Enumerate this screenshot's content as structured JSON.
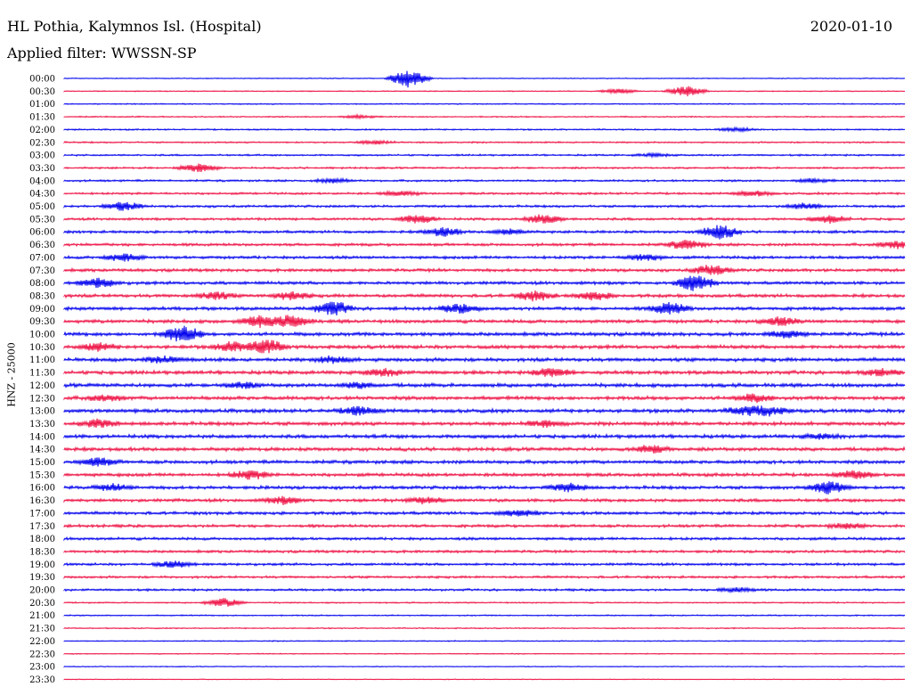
{
  "header": {
    "station": "HL Pothia, Kalymnos Isl. (Hospital)",
    "date": "2020-01-10",
    "filter": "Applied filter: WWSSN-SP",
    "channel_label": "HNZ - 25000"
  },
  "colors": {
    "even_trace": "#0000ee",
    "odd_trace": "#ee1144",
    "background": "#ffffff",
    "text": "#000000"
  },
  "chart_data": {
    "type": "line",
    "title": "HL Pothia, Kalymnos Isl. (Hospital)",
    "ylabel": "HNZ - 25000",
    "rows": [
      {
        "time": "00:00",
        "events": [
          {
            "at": 0.41,
            "amp": 3.4
          }
        ]
      },
      {
        "time": "00:30",
        "events": [
          {
            "at": 0.74,
            "amp": 1.8
          },
          {
            "at": 0.66,
            "amp": 0.8
          }
        ]
      },
      {
        "time": "01:00",
        "events": []
      },
      {
        "time": "01:30",
        "events": [
          {
            "at": 0.35,
            "amp": 0.5
          }
        ]
      },
      {
        "time": "02:00",
        "events": [
          {
            "at": 0.8,
            "amp": 0.6
          }
        ]
      },
      {
        "time": "02:30",
        "events": [
          {
            "at": 0.37,
            "amp": 0.6
          }
        ]
      },
      {
        "time": "03:00",
        "events": [
          {
            "at": 0.7,
            "amp": 0.5
          }
        ]
      },
      {
        "time": "03:30",
        "events": [
          {
            "at": 0.16,
            "amp": 1.4
          }
        ]
      },
      {
        "time": "04:00",
        "events": [
          {
            "at": 0.32,
            "amp": 0.7
          },
          {
            "at": 0.89,
            "amp": 0.6
          }
        ]
      },
      {
        "time": "04:30",
        "events": [
          {
            "at": 0.4,
            "amp": 0.8
          },
          {
            "at": 0.82,
            "amp": 0.9
          }
        ]
      },
      {
        "time": "05:00",
        "events": [
          {
            "at": 0.07,
            "amp": 1.5
          },
          {
            "at": 0.88,
            "amp": 1.0
          }
        ]
      },
      {
        "time": "05:30",
        "events": [
          {
            "at": 0.42,
            "amp": 1.5
          },
          {
            "at": 0.57,
            "amp": 1.6
          },
          {
            "at": 0.91,
            "amp": 1.3
          }
        ]
      },
      {
        "time": "06:00",
        "events": [
          {
            "at": 0.45,
            "amp": 1.5
          },
          {
            "at": 0.53,
            "amp": 0.9
          },
          {
            "at": 0.78,
            "amp": 2.5
          }
        ]
      },
      {
        "time": "06:30",
        "events": [
          {
            "at": 0.74,
            "amp": 1.6
          },
          {
            "at": 0.99,
            "amp": 1.3
          }
        ]
      },
      {
        "time": "07:00",
        "events": [
          {
            "at": 0.07,
            "amp": 1.3
          },
          {
            "at": 0.69,
            "amp": 1.1
          }
        ]
      },
      {
        "time": "07:30",
        "events": [
          {
            "at": 0.77,
            "amp": 1.8
          }
        ]
      },
      {
        "time": "08:00",
        "events": [
          {
            "at": 0.04,
            "amp": 1.6
          },
          {
            "at": 0.75,
            "amp": 2.8
          }
        ]
      },
      {
        "time": "08:30",
        "events": [
          {
            "at": 0.18,
            "amp": 1.3
          },
          {
            "at": 0.27,
            "amp": 1.3
          },
          {
            "at": 0.56,
            "amp": 1.6
          },
          {
            "at": 0.63,
            "amp": 1.4
          }
        ]
      },
      {
        "time": "09:00",
        "events": [
          {
            "at": 0.32,
            "amp": 2.4
          },
          {
            "at": 0.47,
            "amp": 1.4
          },
          {
            "at": 0.72,
            "amp": 2.0
          }
        ]
      },
      {
        "time": "09:30",
        "events": [
          {
            "at": 0.23,
            "amp": 1.9
          },
          {
            "at": 0.27,
            "amp": 2.0
          },
          {
            "at": 0.85,
            "amp": 1.4
          }
        ]
      },
      {
        "time": "10:00",
        "events": [
          {
            "at": 0.14,
            "amp": 3.0
          },
          {
            "at": 0.86,
            "amp": 1.1
          }
        ]
      },
      {
        "time": "10:30",
        "events": [
          {
            "at": 0.04,
            "amp": 1.3
          },
          {
            "at": 0.2,
            "amp": 1.6
          },
          {
            "at": 0.24,
            "amp": 2.4
          }
        ]
      },
      {
        "time": "11:00",
        "events": [
          {
            "at": 0.12,
            "amp": 1.1
          },
          {
            "at": 0.32,
            "amp": 1.0
          }
        ]
      },
      {
        "time": "11:30",
        "events": [
          {
            "at": 0.38,
            "amp": 1.2
          },
          {
            "at": 0.58,
            "amp": 1.6
          },
          {
            "at": 0.97,
            "amp": 1.0
          }
        ]
      },
      {
        "time": "12:00",
        "events": [
          {
            "at": 0.21,
            "amp": 1.0
          },
          {
            "at": 0.35,
            "amp": 0.9
          }
        ]
      },
      {
        "time": "12:30",
        "events": [
          {
            "at": 0.05,
            "amp": 1.0
          },
          {
            "at": 0.82,
            "amp": 1.3
          }
        ]
      },
      {
        "time": "13:00",
        "events": [
          {
            "at": 0.35,
            "amp": 1.4
          },
          {
            "at": 0.81,
            "amp": 1.3
          },
          {
            "at": 0.84,
            "amp": 1.4
          }
        ]
      },
      {
        "time": "13:30",
        "events": [
          {
            "at": 0.04,
            "amp": 1.3
          },
          {
            "at": 0.57,
            "amp": 1.0
          }
        ]
      },
      {
        "time": "14:00",
        "events": [
          {
            "at": 0.9,
            "amp": 0.7
          }
        ]
      },
      {
        "time": "14:30",
        "events": [
          {
            "at": 0.7,
            "amp": 1.3
          }
        ]
      },
      {
        "time": "15:00",
        "events": [
          {
            "at": 0.04,
            "amp": 1.4
          }
        ]
      },
      {
        "time": "15:30",
        "events": [
          {
            "at": 0.22,
            "amp": 1.6
          },
          {
            "at": 0.94,
            "amp": 1.3
          }
        ]
      },
      {
        "time": "16:00",
        "events": [
          {
            "at": 0.06,
            "amp": 1.0
          },
          {
            "at": 0.6,
            "amp": 1.3
          },
          {
            "at": 0.91,
            "amp": 2.2
          }
        ]
      },
      {
        "time": "16:30",
        "events": [
          {
            "at": 0.26,
            "amp": 1.2
          },
          {
            "at": 0.43,
            "amp": 1.0
          }
        ]
      },
      {
        "time": "17:00",
        "events": [
          {
            "at": 0.54,
            "amp": 1.1
          }
        ]
      },
      {
        "time": "17:30",
        "events": [
          {
            "at": 0.93,
            "amp": 0.8
          }
        ]
      },
      {
        "time": "18:00",
        "events": []
      },
      {
        "time": "18:30",
        "events": []
      },
      {
        "time": "19:00",
        "events": [
          {
            "at": 0.13,
            "amp": 1.1
          }
        ]
      },
      {
        "time": "19:30",
        "events": []
      },
      {
        "time": "20:00",
        "events": [
          {
            "at": 0.8,
            "amp": 0.8
          }
        ]
      },
      {
        "time": "20:30",
        "events": [
          {
            "at": 0.19,
            "amp": 1.5
          }
        ]
      },
      {
        "time": "21:00",
        "events": []
      },
      {
        "time": "21:30",
        "events": []
      },
      {
        "time": "22:00",
        "events": []
      },
      {
        "time": "22:30",
        "events": []
      },
      {
        "time": "23:00",
        "events": []
      },
      {
        "time": "23:30",
        "events": []
      }
    ]
  }
}
